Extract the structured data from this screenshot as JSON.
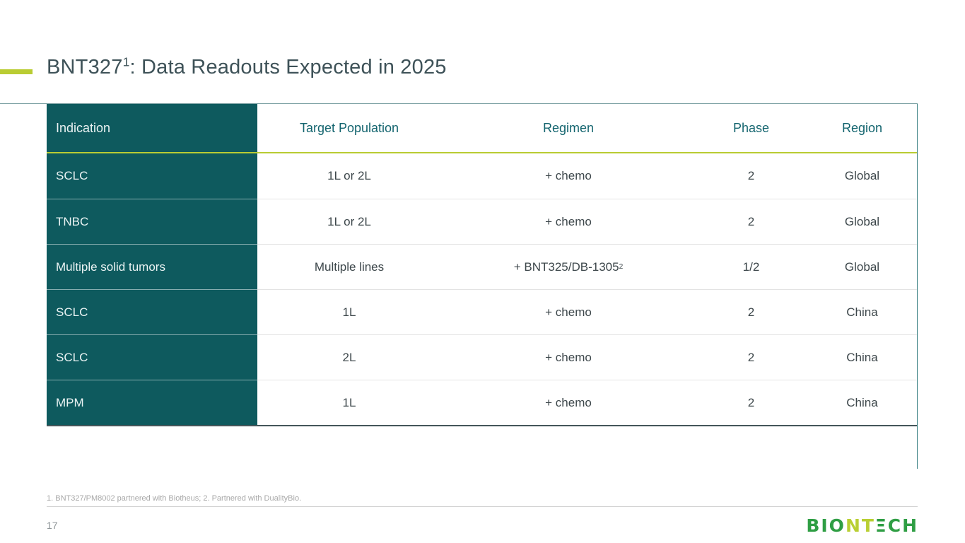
{
  "title": {
    "prefix": "BNT327",
    "superscript": "1",
    "suffix": ": Data Readouts Expected in 2025"
  },
  "table": {
    "headers": [
      "Indication",
      "Target Population",
      "Regimen",
      "Phase",
      "Region"
    ],
    "rows": [
      {
        "indication": "SCLC",
        "target_population": "1L or 2L",
        "regimen": "+ chemo",
        "regimen_sup": "",
        "phase": "2",
        "region": "Global"
      },
      {
        "indication": "TNBC",
        "target_population": "1L or 2L",
        "regimen": "+ chemo",
        "regimen_sup": "",
        "phase": "2",
        "region": "Global"
      },
      {
        "indication": "Multiple solid tumors",
        "target_population": "Multiple lines",
        "regimen": "+ BNT325/DB-1305",
        "regimen_sup": "2",
        "phase": "1/2",
        "region": "Global"
      },
      {
        "indication": "SCLC",
        "target_population": "1L",
        "regimen": "+ chemo",
        "regimen_sup": "",
        "phase": "2",
        "region": "China"
      },
      {
        "indication": "SCLC",
        "target_population": "2L",
        "regimen": "+ chemo",
        "regimen_sup": "",
        "phase": "2",
        "region": "China"
      },
      {
        "indication": "MPM",
        "target_population": "1L",
        "regimen": "+ chemo",
        "regimen_sup": "",
        "phase": "2",
        "region": "China"
      }
    ]
  },
  "footnote": "1. BNT327/PM8002 partnered with Biotheus; 2. Partnered with DualityBio.",
  "page_number": "17",
  "logo": {
    "seg1": "BIO",
    "seg2": "NT",
    "seg3": "ΞCH"
  },
  "colors": {
    "accent_lime": "#b9cc33",
    "teal_dark": "#0e5a5e",
    "teal_header_text": "#14656f",
    "body_text": "#3d474b",
    "title_text": "#3e5258",
    "footnote_gray": "#a8a8a8",
    "logo_green": "#2f9e44",
    "logo_lime": "#b9cf33"
  }
}
